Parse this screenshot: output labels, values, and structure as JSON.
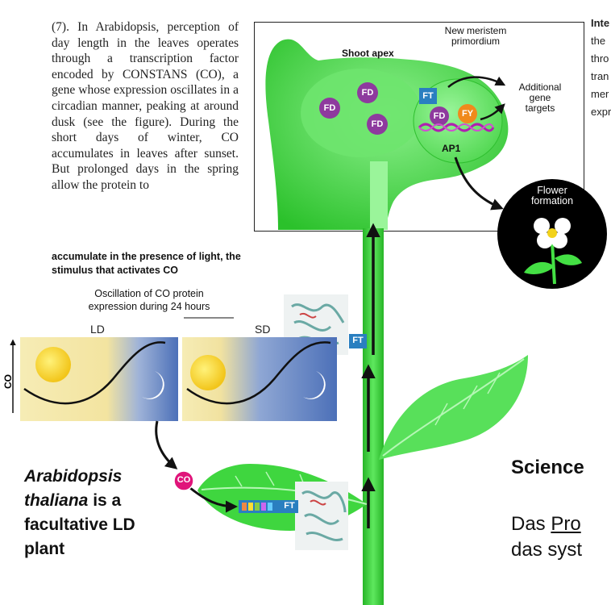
{
  "article": {
    "body": "(7). In Arabidopsis, perception of day length in the leaves operates through a transcription factor encoded by CONSTANS (CO), a gene whose expression oscillates in a circadian manner, peaking at around dusk (see the figure). During the short days of winter, CO accumulates in leaves after sunset. But prolonged days in the spring allow the protein to",
    "bold_continuation_1": "accumulate in the presence of light, the",
    "bold_continuation_2": "stimulus that activates CO"
  },
  "oscillation": {
    "title_line1": "Oscillation of CO protein",
    "title_line2": "expression during 24 hours",
    "ld_label": "LD",
    "sd_label": "SD",
    "y_axis": "CO"
  },
  "inset": {
    "shoot_apex": "Shoot apex",
    "new_meristem_line1": "New meristem",
    "new_meristem_line2": "primordium",
    "additional_line1": "Additional",
    "additional_line2": "gene",
    "additional_line3": "targets",
    "ap1": "AP1",
    "fd": "FD",
    "ft": "FT",
    "fy": "FY",
    "flower_line1": "Flower",
    "flower_line2": "formation"
  },
  "plant": {
    "co": "CO",
    "ft": "FT"
  },
  "right_text": [
    "Inte",
    "the",
    "thro",
    "tran",
    "mer",
    "expr"
  ],
  "caption": {
    "line1": "Arabidopsis",
    "line2": "thaliana",
    "line2_rest": " is a",
    "line3": "facultative LD",
    "line4": "plant"
  },
  "science": "Science",
  "german": {
    "line1_a": "Das ",
    "line1_b": "Pro",
    "line2": "das syst"
  },
  "colors": {
    "plant_green": "#2ecc2e",
    "fd_purple": "#8e3a9e",
    "ft_blue": "#2a7fc0",
    "fy_orange": "#f08a1c",
    "co_magenta": "#e0147a",
    "ld_sky": "#f4e7a6",
    "night_blue": "#4f74b8"
  }
}
